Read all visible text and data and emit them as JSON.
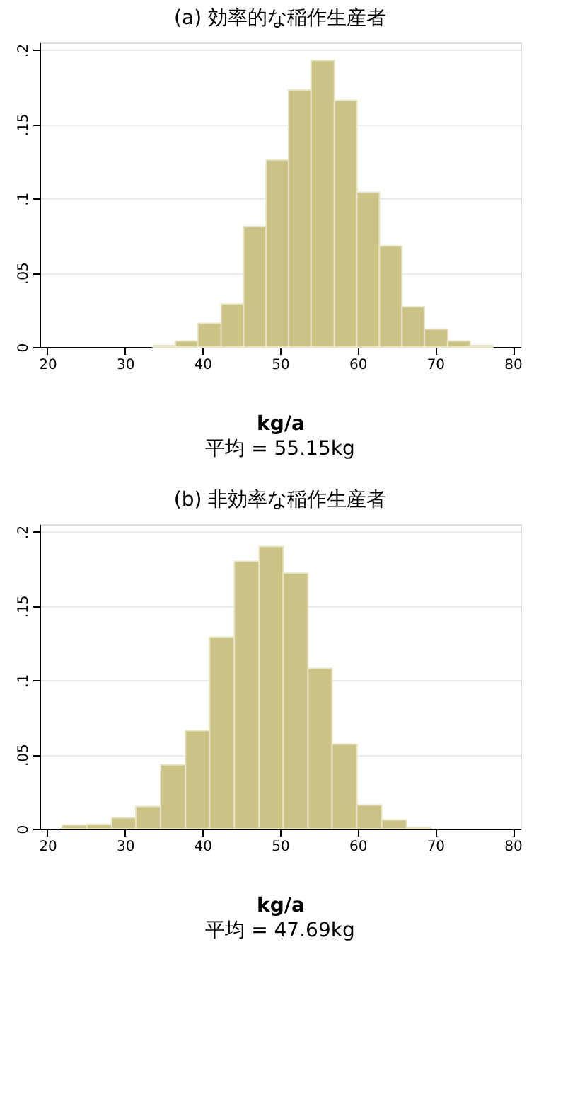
{
  "chart_data": [
    {
      "type": "histogram",
      "title": "(a) 効率的な稲作生産者",
      "xlabel": "kg/a",
      "annotations": [
        "平均 = 55.15kg"
      ],
      "color": "#cbc286",
      "grid": "y",
      "bins": [
        33.6,
        36.5,
        39.4,
        42.4,
        45.3,
        48.2,
        51.1,
        54.0,
        57.0,
        59.9,
        62.8,
        65.7,
        68.6,
        71.6,
        74.5,
        77.4
      ],
      "values": [
        0.001,
        0.004,
        0.016,
        0.029,
        0.081,
        0.126,
        0.173,
        0.193,
        0.166,
        0.104,
        0.068,
        0.027,
        0.012,
        0.004,
        0.001
      ],
      "xlim": [
        19,
        81
      ],
      "xticks": [
        20,
        30,
        40,
        50,
        60,
        70,
        80
      ],
      "ylim": [
        0,
        0.205
      ],
      "yticks": [
        {
          "value": 0,
          "label": "0"
        },
        {
          "value": 0.05,
          "label": ".05"
        },
        {
          "value": 0.1,
          "label": ".1"
        },
        {
          "value": 0.15,
          "label": ".15"
        },
        {
          "value": 0.2,
          "label": ".2"
        }
      ]
    },
    {
      "type": "histogram",
      "title": "(b) 非効率な稲作生産者",
      "xlabel": "kg/a",
      "annotations": [
        "平均 = 47.69kg"
      ],
      "color": "#cbc286",
      "grid": "y",
      "bins": [
        21.9,
        25.1,
        28.3,
        31.4,
        34.6,
        37.8,
        40.9,
        44.1,
        47.3,
        50.4,
        53.6,
        56.7,
        59.9,
        63.1,
        66.3,
        69.4
      ],
      "values": [
        0.0025,
        0.003,
        0.0074,
        0.015,
        0.043,
        0.066,
        0.129,
        0.18,
        0.19,
        0.172,
        0.108,
        0.057,
        0.016,
        0.006,
        0.001
      ],
      "xlim": [
        19,
        81
      ],
      "xticks": [
        20,
        30,
        40,
        50,
        60,
        70,
        80
      ],
      "ylim": [
        0,
        0.205
      ],
      "yticks": [
        {
          "value": 0,
          "label": "0"
        },
        {
          "value": 0.05,
          "label": ".05"
        },
        {
          "value": 0.1,
          "label": ".1"
        },
        {
          "value": 0.15,
          "label": ".15"
        },
        {
          "value": 0.2,
          "label": ".2"
        }
      ]
    }
  ]
}
